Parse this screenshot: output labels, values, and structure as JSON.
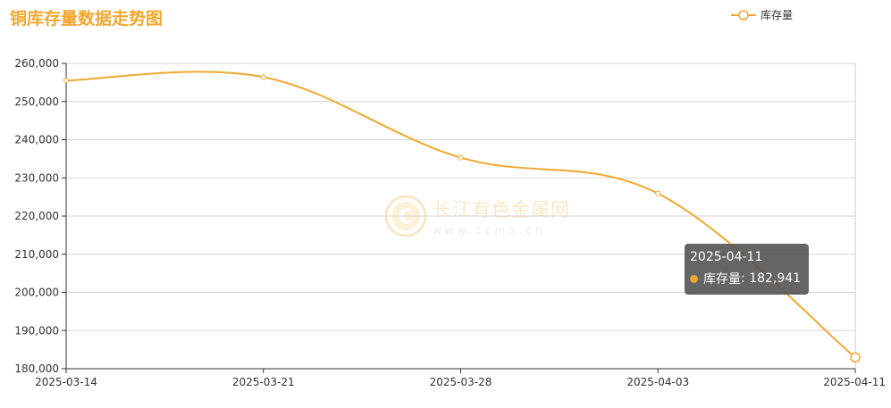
{
  "title": "铜库存量数据走势图",
  "legend": {
    "label": "库存量",
    "icon": "line-circle-icon"
  },
  "watermark": {
    "main": "长江有色金属网",
    "sub": "www.ccmn.cn",
    "icon": "ccmn-logo-icon"
  },
  "tooltip": {
    "date": "2025-04-11",
    "series": "库存量",
    "value": "182,941"
  },
  "colors": {
    "series": "#f0a830",
    "grid": "#cccccc",
    "axis": "#333333"
  },
  "chart_data": {
    "type": "line",
    "title": "铜库存量数据走势图",
    "xlabel": "",
    "ylabel": "",
    "categories": [
      "2025-03-14",
      "2025-03-21",
      "2025-03-28",
      "2025-04-03",
      "2025-04-11"
    ],
    "series": [
      {
        "name": "库存量",
        "values": [
          255500,
          256400,
          235300,
          225900,
          182941
        ]
      }
    ],
    "yticks": [
      180000,
      190000,
      200000,
      210000,
      220000,
      230000,
      240000,
      250000,
      260000
    ],
    "ytick_labels": [
      "180,000",
      "190,000",
      "200,000",
      "210,000",
      "220,000",
      "230,000",
      "240,000",
      "250,000",
      "260,000"
    ],
    "ylim": [
      180000,
      260000
    ],
    "smooth": true,
    "grid": true,
    "legend_position": "top-right"
  }
}
